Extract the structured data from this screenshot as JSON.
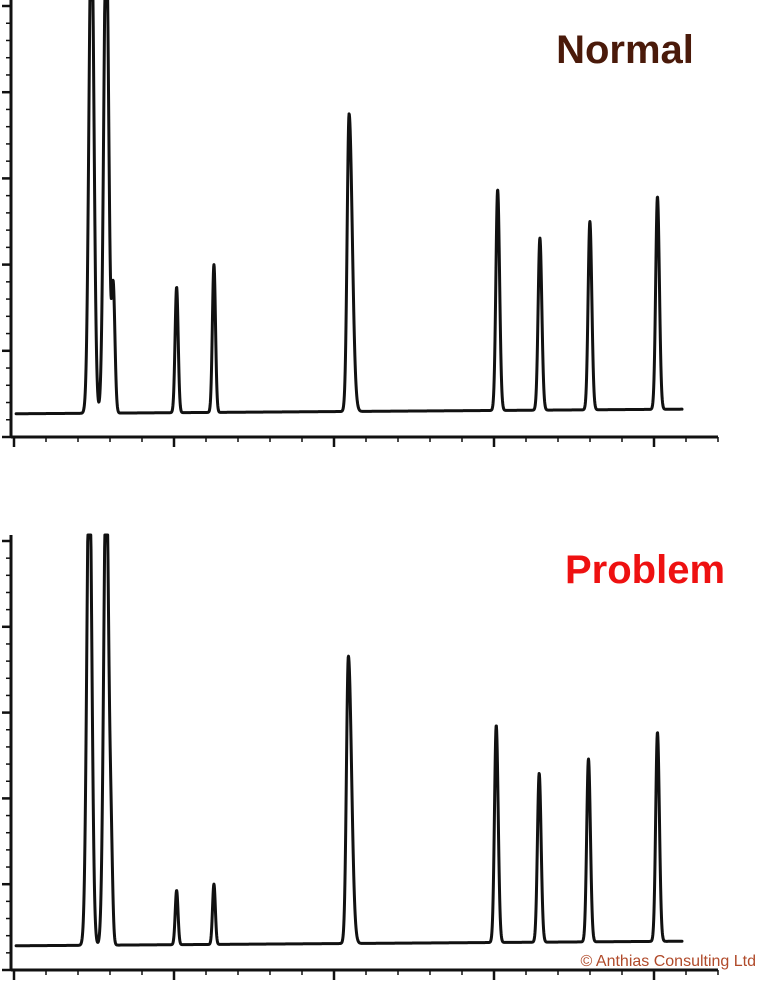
{
  "chart_data": [
    {
      "type": "line",
      "title": "Normal",
      "title_color": "#4a1a0a",
      "line_color": "#111111",
      "xlabel": "",
      "ylabel": "",
      "x_range": [
        0,
        100
      ],
      "y_range": [
        0,
        100
      ],
      "grid": false,
      "peaks": [
        {
          "x": 11.0,
          "height": 125,
          "width": 0.35,
          "tail": 0
        },
        {
          "x": 13.1,
          "height": 122,
          "width": 0.35,
          "tail": 0
        },
        {
          "x": 14.1,
          "height": 30.5,
          "width": 0.22,
          "tail": 0.1
        },
        {
          "x": 23.1,
          "height": 31.0,
          "width": 0.22,
          "tail": 0
        },
        {
          "x": 28.4,
          "height": 36.5,
          "width": 0.22,
          "tail": 0
        },
        {
          "x": 47.6,
          "height": 73.5,
          "width": 0.28,
          "tail": 0.6
        },
        {
          "x": 68.7,
          "height": 54.5,
          "width": 0.25,
          "tail": 0.1
        },
        {
          "x": 74.7,
          "height": 42.5,
          "width": 0.25,
          "tail": 0.1
        },
        {
          "x": 81.8,
          "height": 46.5,
          "width": 0.25,
          "tail": 0.1
        },
        {
          "x": 91.4,
          "height": 52.5,
          "width": 0.25,
          "tail": 0.1
        }
      ]
    },
    {
      "type": "line",
      "title": "Problem",
      "title_color": "#ee1111",
      "line_color": "#111111",
      "xlabel": "",
      "ylabel": "",
      "x_range": [
        0,
        100
      ],
      "y_range": [
        0,
        100
      ],
      "grid": false,
      "peaks": [
        {
          "x": 10.7,
          "height": 125,
          "width": 0.35,
          "tail": 0
        },
        {
          "x": 13.1,
          "height": 122,
          "width": 0.35,
          "tail": 0
        },
        {
          "x": 13.8,
          "height": 19.5,
          "width": 0.2,
          "tail": 0.1
        },
        {
          "x": 23.1,
          "height": 13.5,
          "width": 0.2,
          "tail": 0
        },
        {
          "x": 28.4,
          "height": 15.0,
          "width": 0.2,
          "tail": 0
        },
        {
          "x": 47.5,
          "height": 71.5,
          "width": 0.28,
          "tail": 0.6
        },
        {
          "x": 68.5,
          "height": 54.0,
          "width": 0.25,
          "tail": 0.1
        },
        {
          "x": 74.6,
          "height": 42.0,
          "width": 0.25,
          "tail": 0.1
        },
        {
          "x": 81.6,
          "height": 45.5,
          "width": 0.25,
          "tail": 0.1
        },
        {
          "x": 91.4,
          "height": 52.0,
          "width": 0.25,
          "tail": 0.1
        }
      ]
    }
  ],
  "copyright": "© Anthias Consulting Ltd",
  "copyright_color": "#b04a2a"
}
